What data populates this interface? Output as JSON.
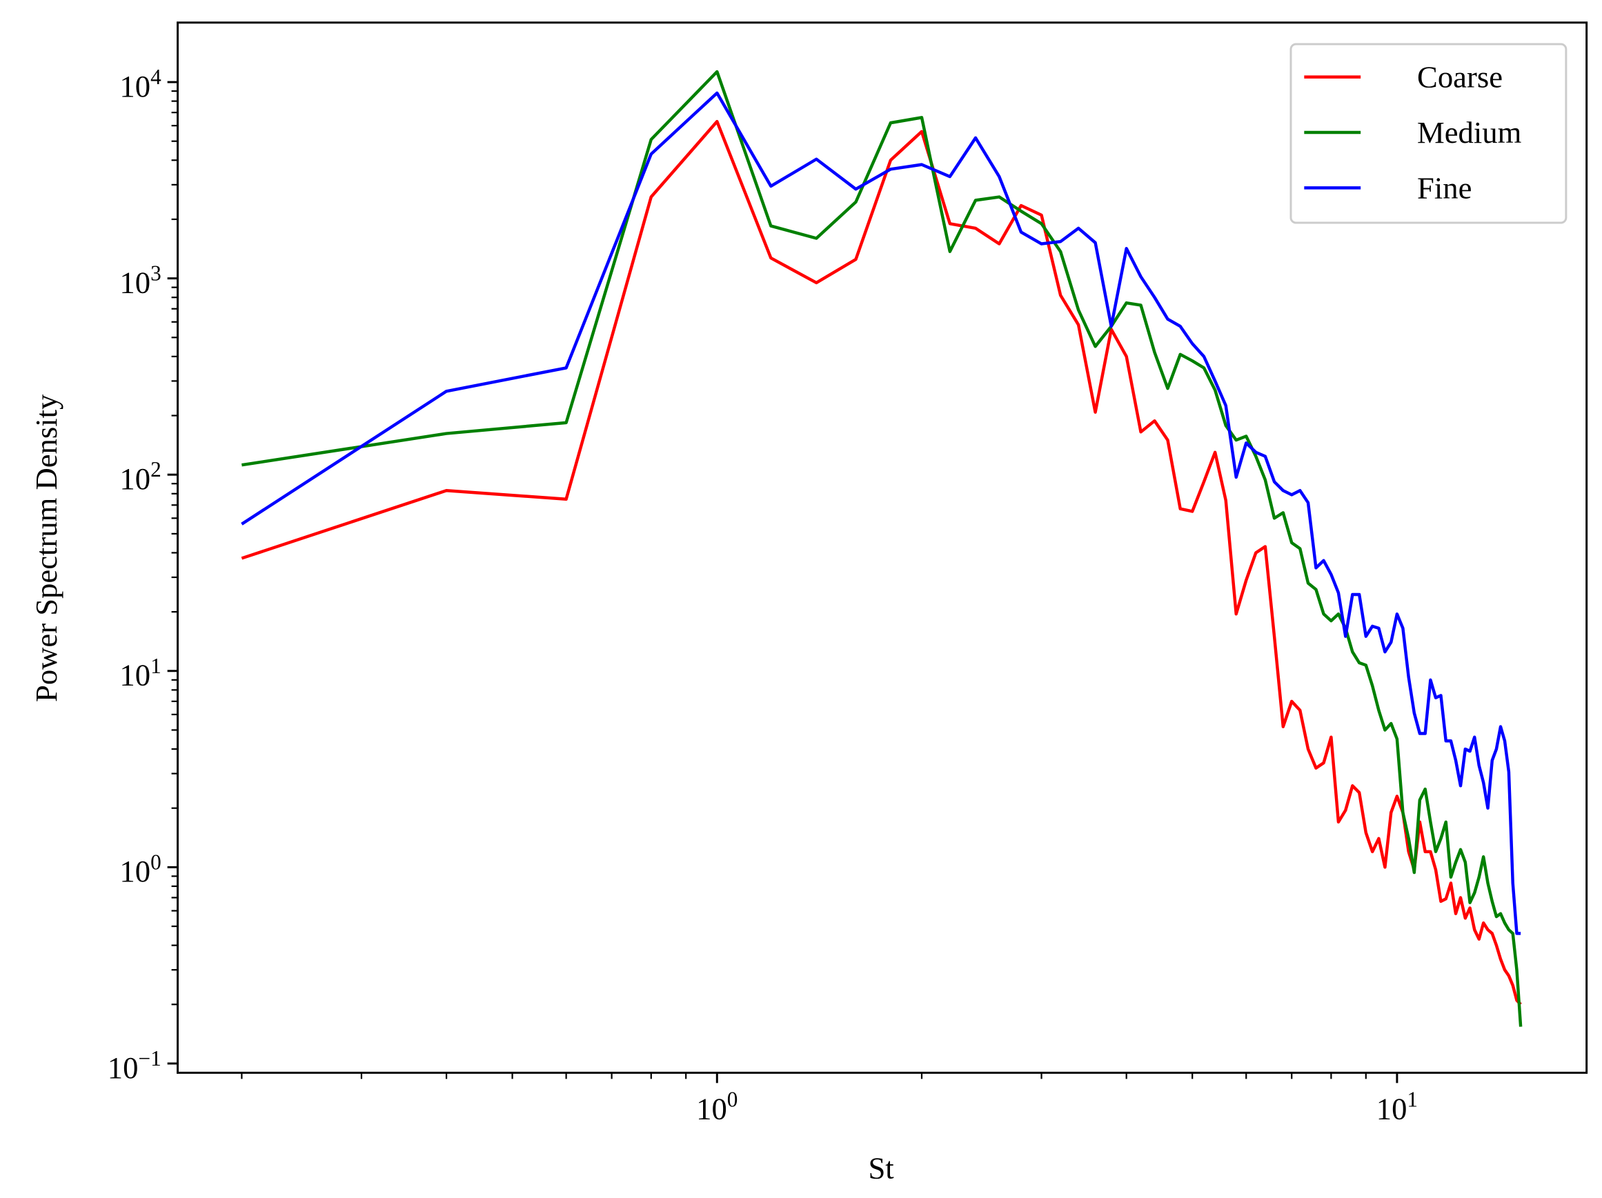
{
  "chart_data": {
    "type": "line",
    "xlabel": "St",
    "ylabel": "Power Spectrum Density",
    "xscale": "log",
    "yscale": "log",
    "xlim": [
      0.161,
      19.0
    ],
    "ylim": [
      0.0897,
      20100
    ],
    "xticks": [
      {
        "value": 1,
        "label": "10^0"
      },
      {
        "value": 10,
        "label": "10^1"
      }
    ],
    "yticks": [
      {
        "value": 0.1,
        "label": "10^−1"
      },
      {
        "value": 1,
        "label": "10^0"
      },
      {
        "value": 10,
        "label": "10^1"
      },
      {
        "value": 100,
        "label": "10^2"
      },
      {
        "value": 1000,
        "label": "10^3"
      },
      {
        "value": 10000,
        "label": "10^4"
      }
    ],
    "xminorticks": [
      0.2,
      0.3,
      0.4,
      0.5,
      0.6,
      0.7,
      0.8,
      0.9,
      2,
      3,
      4,
      5,
      6,
      7,
      8,
      9
    ],
    "yminorticks": [
      0.2,
      0.3,
      0.4,
      0.5,
      0.6,
      0.7,
      0.8,
      0.9,
      2,
      3,
      4,
      5,
      6,
      7,
      8,
      9,
      20,
      30,
      40,
      50,
      60,
      70,
      80,
      90,
      200,
      300,
      400,
      500,
      600,
      700,
      800,
      900,
      2000,
      3000,
      4000,
      5000,
      6000,
      7000,
      8000,
      9000
    ],
    "grid": false,
    "legend_loc": "upper right",
    "x": [
      0.2,
      0.4,
      0.6,
      0.8,
      1.0,
      1.2,
      1.4,
      1.6,
      1.8,
      2.0,
      2.2,
      2.4,
      2.6,
      2.8,
      3.0,
      3.2,
      3.4,
      3.6,
      3.8,
      4.0,
      4.2,
      4.4,
      4.6,
      4.8,
      5.0,
      5.2,
      5.4,
      5.6,
      5.8,
      6.0,
      6.2,
      6.4,
      6.6,
      6.8,
      7.0,
      7.2,
      7.4,
      7.6,
      7.8,
      8.0,
      8.2,
      8.4,
      8.6,
      8.8,
      9.0,
      9.2,
      9.4,
      9.6,
      9.8,
      10.0,
      10.2,
      10.4,
      10.6,
      10.8,
      11.0,
      11.2,
      11.4,
      11.6,
      11.8,
      12.0,
      12.2,
      12.4,
      12.6,
      12.8,
      13.0,
      13.2,
      13.4,
      13.6,
      13.8,
      14.0,
      14.2,
      14.4,
      14.6,
      14.8,
      15.0,
      15.2
    ],
    "series": [
      {
        "name": "Coarse",
        "color": "#ff0000",
        "values": [
          37.5,
          83,
          75,
          2600,
          6300,
          1270,
          950,
          1250,
          4000,
          5600,
          1900,
          1800,
          1500,
          2350,
          2100,
          820,
          580,
          208,
          550,
          400,
          165,
          188,
          150,
          67,
          65,
          92,
          130,
          74,
          19.5,
          29,
          40,
          43,
          15,
          5.2,
          7,
          6.3,
          4,
          3.2,
          3.4,
          4.6,
          1.7,
          1.95,
          2.6,
          2.4,
          1.5,
          1.2,
          1.4,
          1.0,
          1.9,
          2.3,
          1.9,
          1.2,
          0.97,
          1.7,
          1.2,
          1.2,
          0.97,
          0.67,
          0.69,
          0.83,
          0.58,
          0.7,
          0.55,
          0.62,
          0.48,
          0.43,
          0.52,
          0.48,
          0.46,
          0.4,
          0.34,
          0.3,
          0.28,
          0.25,
          0.21,
          0.2
        ]
      },
      {
        "name": "Medium",
        "color": "#008000",
        "values": [
          112,
          162,
          184,
          5100,
          11300,
          1850,
          1600,
          2450,
          6200,
          6600,
          1370,
          2500,
          2600,
          2200,
          1900,
          1370,
          690,
          450,
          570,
          750,
          730,
          420,
          275,
          410,
          380,
          350,
          270,
          178,
          150,
          157,
          124,
          94,
          60,
          64,
          45,
          42,
          28,
          26,
          19.5,
          18,
          19.5,
          16.5,
          12.5,
          11,
          10.7,
          8.4,
          6.3,
          5.0,
          5.4,
          4.5,
          1.9,
          1.4,
          0.94,
          2.2,
          2.5,
          1.7,
          1.2,
          1.4,
          1.7,
          0.89,
          1.06,
          1.23,
          1.06,
          0.66,
          0.74,
          0.89,
          1.13,
          0.83,
          0.67,
          0.56,
          0.58,
          0.52,
          0.48,
          0.46,
          0.3,
          0.154
        ]
      },
      {
        "name": "Fine",
        "color": "#0000ff",
        "values": [
          56,
          266,
          350,
          4300,
          8800,
          2950,
          4050,
          2850,
          3600,
          3800,
          3300,
          5200,
          3300,
          1720,
          1500,
          1540,
          1800,
          1520,
          570,
          1420,
          1020,
          800,
          620,
          570,
          465,
          400,
          300,
          225,
          97,
          145,
          130,
          124,
          92,
          83,
          79,
          83,
          72,
          33.5,
          36.5,
          31,
          25,
          15,
          24.5,
          24.5,
          15,
          16.9,
          16.5,
          12.5,
          14,
          19.5,
          16.5,
          9.3,
          6.1,
          4.8,
          4.8,
          9,
          7.3,
          7.5,
          4.4,
          4.4,
          3.5,
          2.6,
          4.0,
          3.9,
          4.6,
          3.3,
          2.7,
          2.0,
          3.5,
          4.0,
          5.2,
          4.4,
          3.06,
          0.83,
          0.46,
          0.46
        ]
      }
    ]
  }
}
